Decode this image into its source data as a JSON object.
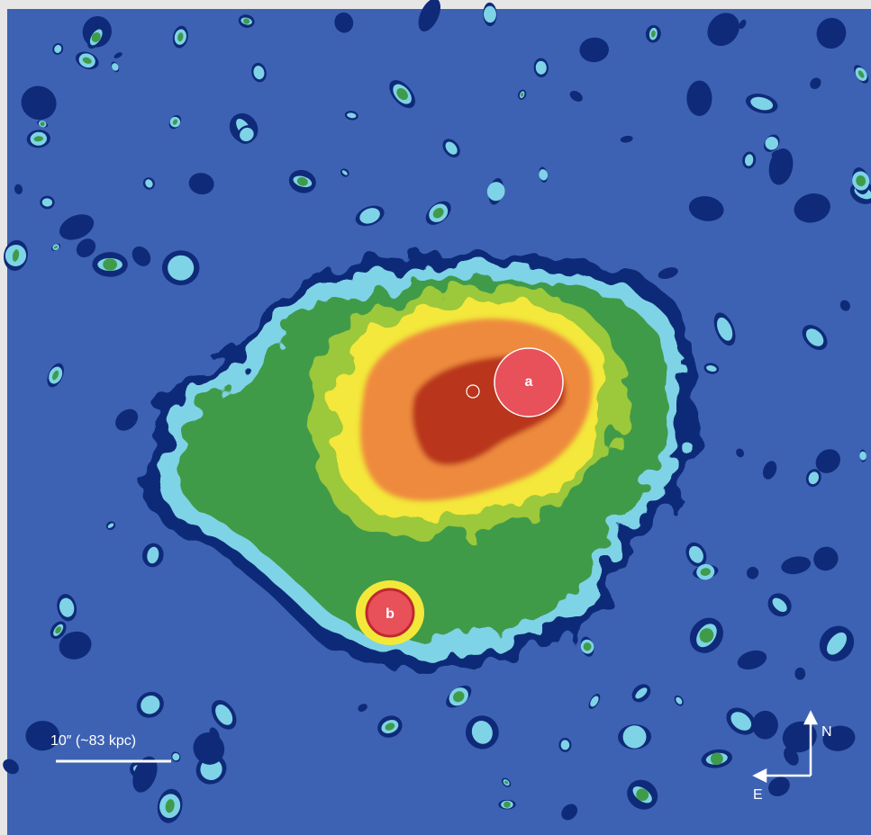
{
  "labels": {
    "source_a": "a",
    "source_b": "b"
  },
  "scale_bar": {
    "label": "10″ (~83 kpc)"
  },
  "compass": {
    "north": "N",
    "east": "E"
  }
}
